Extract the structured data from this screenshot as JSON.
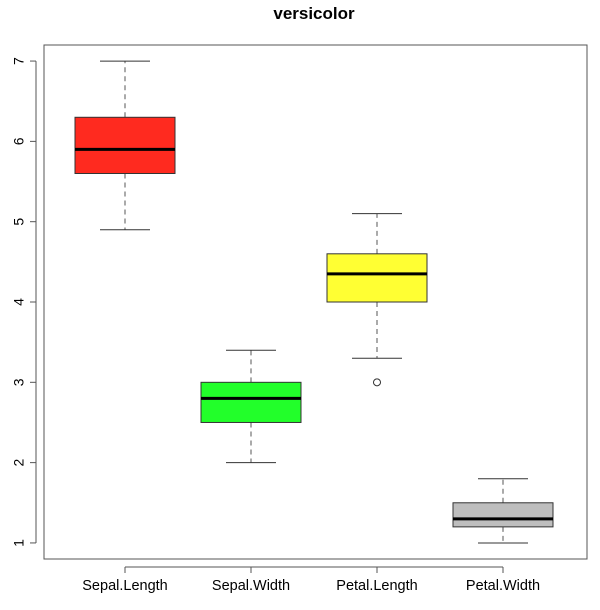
{
  "chart_data": {
    "type": "boxplot",
    "title": "versicolor",
    "xlabel": "",
    "ylabel": "",
    "ylim": [
      0.8,
      7.2
    ],
    "yticks": [
      1,
      2,
      3,
      4,
      5,
      6,
      7
    ],
    "grid": false,
    "categories": [
      "Sepal.Length",
      "Sepal.Width",
      "Petal.Length",
      "Petal.Width"
    ],
    "boxes": [
      {
        "category": "Sepal.Length",
        "min": 4.9,
        "q1": 5.6,
        "median": 5.9,
        "q3": 6.3,
        "max": 7.0,
        "outliers": [],
        "color": "#ff2a1f"
      },
      {
        "category": "Sepal.Width",
        "min": 2.0,
        "q1": 2.5,
        "median": 2.8,
        "q3": 3.0,
        "max": 3.4,
        "outliers": [],
        "color": "#22ff2a"
      },
      {
        "category": "Petal.Length",
        "min": 3.3,
        "q1": 4.0,
        "median": 4.35,
        "q3": 4.6,
        "max": 5.1,
        "outliers": [
          3.0
        ],
        "color": "#ffff33"
      },
      {
        "category": "Petal.Width",
        "min": 1.0,
        "q1": 1.2,
        "median": 1.3,
        "q3": 1.5,
        "max": 1.8,
        "outliers": [],
        "color": "#bebebe"
      }
    ]
  }
}
